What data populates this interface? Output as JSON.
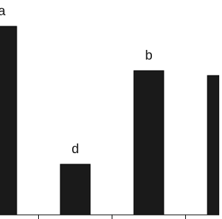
{
  "chart_data": {
    "type": "bar",
    "categories": [
      null,
      null,
      null,
      null
    ],
    "values": [
      272,
      73,
      208,
      201
    ],
    "letters": [
      "a",
      "d",
      "b",
      null
    ],
    "color": "#1a1a1a",
    "ylim": [
      0,
      300
    ]
  }
}
